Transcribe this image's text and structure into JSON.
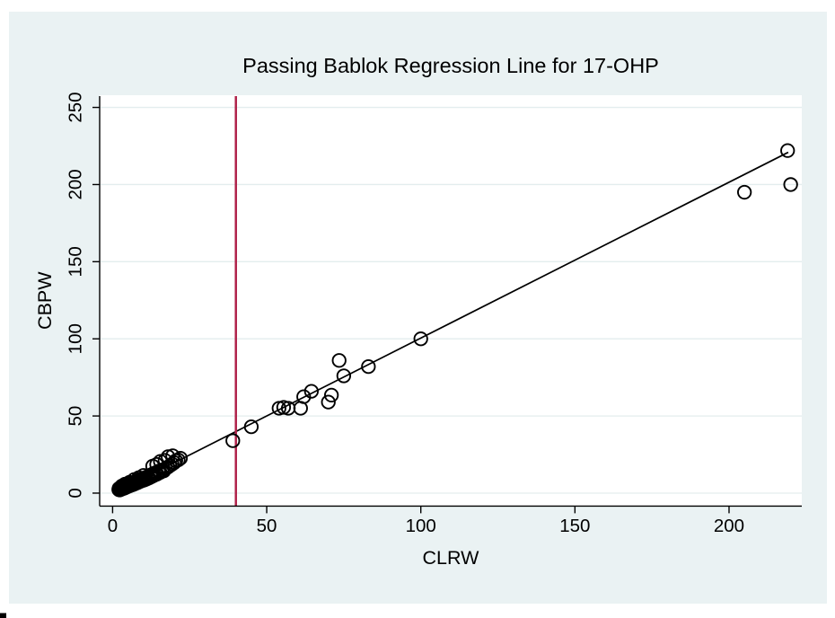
{
  "window": {
    "background_color": "#ffffff",
    "figure_background_color": "#eaf2f3",
    "plot_background_color": "#ffffff"
  },
  "chart_data": {
    "type": "scatter",
    "title": "Passing Bablok Regression Line for 17-OHP",
    "xlabel": "CLRW",
    "ylabel": "CBPW",
    "x_ticks": [
      0,
      50,
      100,
      150,
      200
    ],
    "y_ticks": [
      0,
      50,
      100,
      150,
      200,
      250
    ],
    "xlim": [
      -4.2,
      223.6
    ],
    "ylim": [
      -8.4,
      257.9
    ],
    "grid": "horizontal-only",
    "legend": "none",
    "colors": {
      "marker": "#000000",
      "regression_line": "#000000",
      "vertical_reference_line": "#b0234a",
      "gridline": "#e3edee",
      "axis": "#000000",
      "text": "#000000"
    },
    "marker_style": {
      "shape": "hollow-circle",
      "radius": 7.2,
      "stroke_width": 1.9
    },
    "regression_line": {
      "slope": 1.01,
      "intercept": -0.5,
      "x_start": 0.8,
      "x_end": 219.2
    },
    "vertical_line": {
      "x": 40
    },
    "points": [
      [
        2,
        2.3
      ],
      [
        2.1,
        3
      ],
      [
        2.3,
        2
      ],
      [
        2.5,
        3.3
      ],
      [
        2.7,
        2.5
      ],
      [
        2.9,
        3.7
      ],
      [
        3.1,
        2.7
      ],
      [
        3.3,
        4
      ],
      [
        3.5,
        3.1
      ],
      [
        3.7,
        4.3
      ],
      [
        3.9,
        3.3
      ],
      [
        4.1,
        4.7
      ],
      [
        4.3,
        3.7
      ],
      [
        4.5,
        5
      ],
      [
        4.7,
        4.1
      ],
      [
        4.9,
        5.4
      ],
      [
        5.1,
        4.4
      ],
      [
        5.3,
        5.7
      ],
      [
        5.6,
        4.8
      ],
      [
        5.9,
        6.1
      ],
      [
        6.2,
        5.2
      ],
      [
        6.5,
        6.6
      ],
      [
        6.8,
        5.7
      ],
      [
        7.1,
        7.1
      ],
      [
        7.4,
        6.2
      ],
      [
        7.7,
        7.6
      ],
      [
        8,
        6.7
      ],
      [
        8.3,
        8.2
      ],
      [
        8.6,
        7.3
      ],
      [
        9,
        8.8
      ],
      [
        9.4,
        7.9
      ],
      [
        9.8,
        9.4
      ],
      [
        10.2,
        8.4
      ],
      [
        10.6,
        10.1
      ],
      [
        11,
        9.1
      ],
      [
        11.4,
        10.8
      ],
      [
        11.8,
        9.8
      ],
      [
        12.2,
        11.6
      ],
      [
        12.6,
        10.6
      ],
      [
        13,
        12.4
      ],
      [
        13.4,
        11.4
      ],
      [
        13.9,
        13.2
      ],
      [
        14.4,
        12.3
      ],
      [
        14.9,
        14.2
      ],
      [
        15.4,
        13.4
      ],
      [
        16,
        15
      ],
      [
        16.6,
        14.4
      ],
      [
        17.2,
        16
      ],
      [
        17.9,
        16.8
      ],
      [
        18.6,
        17.8
      ],
      [
        19.3,
        18.8
      ],
      [
        20,
        19.8
      ],
      [
        13,
        17.5
      ],
      [
        14.3,
        18.6
      ],
      [
        15.5,
        20.6
      ],
      [
        17,
        21.2
      ],
      [
        18,
        23.6
      ],
      [
        19.5,
        24.2
      ],
      [
        20.5,
        21
      ],
      [
        21.3,
        21.5
      ],
      [
        22,
        22.6
      ],
      [
        10,
        11.5
      ],
      [
        8.5,
        10
      ],
      [
        7,
        8.8
      ],
      [
        5.5,
        7
      ],
      [
        4,
        5.8
      ],
      [
        3,
        4.6
      ],
      [
        39,
        34
      ],
      [
        45,
        43
      ],
      [
        54,
        55
      ],
      [
        55.5,
        55.6
      ],
      [
        57,
        55
      ],
      [
        61,
        55
      ],
      [
        62,
        62.5
      ],
      [
        64.5,
        66
      ],
      [
        70,
        59
      ],
      [
        71,
        63.5
      ],
      [
        73.5,
        86
      ],
      [
        75,
        76
      ],
      [
        83,
        82
      ],
      [
        100,
        100
      ],
      [
        205,
        195
      ],
      [
        219,
        222
      ],
      [
        220,
        200
      ]
    ]
  }
}
